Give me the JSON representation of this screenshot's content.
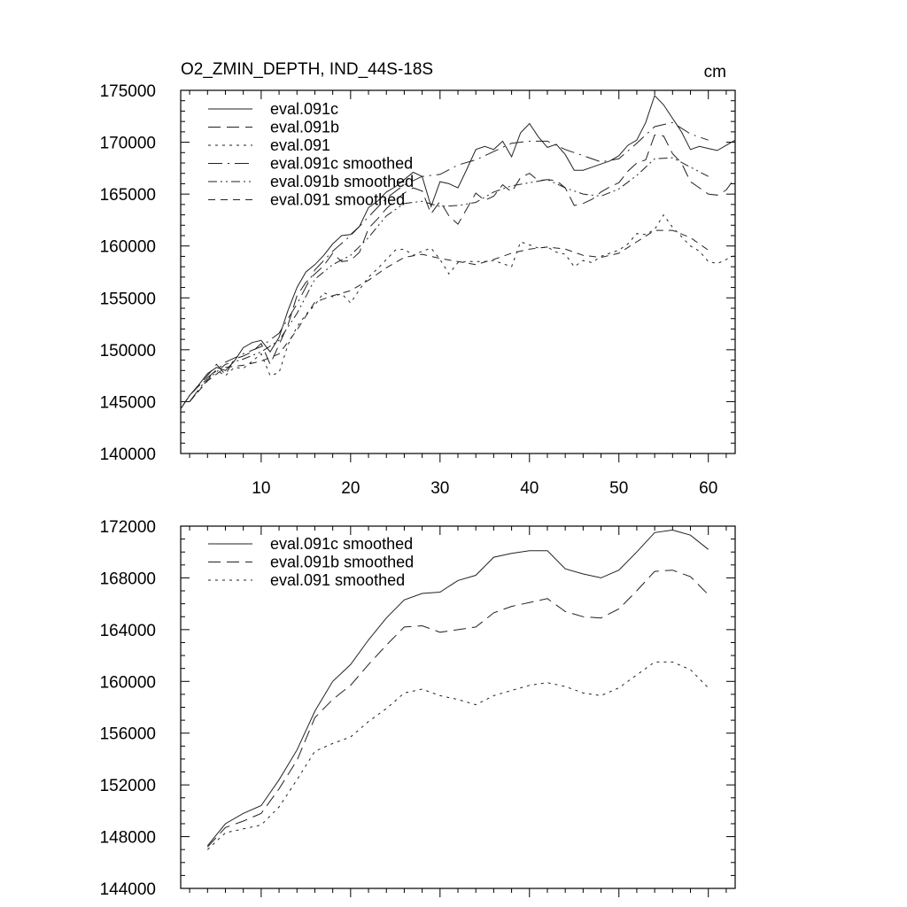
{
  "chart_data": [
    {
      "type": "line",
      "title": "O2_ZMIN_DEPTH, IND_44S-18S",
      "units": "cm",
      "xlabel": "",
      "ylabel": "",
      "xlim": [
        1,
        63
      ],
      "ylim": [
        140000,
        175000
      ],
      "xticks": [
        10,
        20,
        30,
        40,
        50,
        60
      ],
      "xtick_labels": [
        "10",
        "20",
        "30",
        "40",
        "50",
        "60"
      ],
      "yticks": [
        140000,
        145000,
        150000,
        155000,
        160000,
        165000,
        170000,
        175000
      ],
      "ytick_labels": [
        "140000",
        "145000",
        "150000",
        "155000",
        "160000",
        "165000",
        "170000",
        "175000"
      ],
      "legend_position": "top-left",
      "series": [
        {
          "name": "eval.091c",
          "style": "solid",
          "x": [
            1,
            2,
            3,
            4,
            5,
            6,
            7,
            8,
            9,
            10,
            11,
            12,
            13,
            14,
            15,
            16,
            17,
            18,
            19,
            20,
            21,
            22,
            23,
            24,
            25,
            26,
            27,
            28,
            29,
            30,
            31,
            32,
            33,
            34,
            35,
            36,
            37,
            38,
            39,
            40,
            41,
            42,
            43,
            44,
            45,
            46,
            47,
            48,
            49,
            50,
            51,
            52,
            53,
            54,
            55,
            56,
            57,
            58,
            59,
            60,
            61,
            62,
            63
          ],
          "values": [
            144300,
            145600,
            146600,
            147700,
            148300,
            148000,
            148900,
            150200,
            150700,
            150900,
            149800,
            151200,
            153800,
            156000,
            157500,
            158200,
            159100,
            160200,
            161000,
            161100,
            161900,
            163700,
            164300,
            165200,
            165700,
            166400,
            167100,
            166700,
            163800,
            166200,
            166000,
            165600,
            167400,
            169300,
            169600,
            169300,
            170100,
            168600,
            170900,
            171800,
            170500,
            169500,
            169800,
            168800,
            167300,
            167300,
            167600,
            167900,
            168200,
            168700,
            169700,
            170200,
            171900,
            174500,
            173600,
            172300,
            171000,
            169300,
            169600,
            169400,
            169200,
            169700,
            170200
          ]
        },
        {
          "name": "eval.091b",
          "style": "long-dash",
          "x": [
            1,
            2,
            3,
            4,
            5,
            6,
            7,
            8,
            9,
            10,
            11,
            12,
            13,
            14,
            15,
            16,
            17,
            18,
            19,
            20,
            21,
            22,
            23,
            24,
            25,
            26,
            27,
            28,
            29,
            30,
            31,
            32,
            33,
            34,
            35,
            36,
            37,
            38,
            39,
            40,
            41,
            42,
            43,
            44,
            45,
            46,
            47,
            48,
            49,
            50,
            51,
            52,
            53,
            54,
            55,
            56,
            57,
            58,
            59,
            60,
            61,
            62,
            63
          ],
          "values": [
            144300,
            145600,
            146500,
            147500,
            148600,
            147600,
            149100,
            149400,
            149800,
            150600,
            148600,
            150500,
            152400,
            155200,
            156500,
            157300,
            158100,
            159300,
            158500,
            158600,
            159400,
            161700,
            162600,
            163600,
            164400,
            165100,
            165600,
            165300,
            163100,
            164300,
            162900,
            162100,
            163600,
            165100,
            164400,
            164800,
            165900,
            165200,
            166600,
            167000,
            166300,
            166400,
            166300,
            165600,
            163900,
            164100,
            164500,
            165200,
            165700,
            166100,
            167200,
            168000,
            168300,
            170700,
            170600,
            168900,
            168000,
            166200,
            165600,
            165000,
            164900,
            165400,
            166600
          ]
        },
        {
          "name": "eval.091",
          "style": "dot",
          "x": [
            1,
            2,
            3,
            4,
            5,
            6,
            7,
            8,
            9,
            10,
            11,
            12,
            13,
            14,
            15,
            16,
            17,
            18,
            19,
            20,
            21,
            22,
            23,
            24,
            25,
            26,
            27,
            28,
            29,
            30,
            31,
            32,
            33,
            34,
            35,
            36,
            37,
            38,
            39,
            40,
            41,
            42,
            43,
            44,
            45,
            46,
            47,
            48,
            49,
            50,
            51,
            52,
            53,
            54,
            55,
            56,
            57,
            58,
            59,
            60,
            61,
            62,
            63
          ],
          "values": [
            144300,
            145600,
            146500,
            147200,
            148000,
            147500,
            148300,
            148200,
            148900,
            149600,
            147500,
            147800,
            150500,
            152200,
            153400,
            154300,
            155500,
            155100,
            155400,
            154500,
            155800,
            157000,
            157800,
            158700,
            159600,
            159700,
            159100,
            159500,
            159800,
            158700,
            157300,
            158400,
            158500,
            158500,
            158500,
            158600,
            158300,
            158000,
            160400,
            160100,
            159800,
            159900,
            159400,
            159200,
            158000,
            158600,
            158400,
            159000,
            159300,
            159600,
            160200,
            161200,
            161100,
            161600,
            163000,
            161800,
            160900,
            160000,
            159500,
            158500,
            158300,
            158700,
            159100
          ]
        },
        {
          "name": "eval.091c smoothed",
          "style": "dash-dot",
          "x": [
            2,
            4,
            6,
            8,
            10,
            12,
            14,
            16,
            18,
            20,
            22,
            24,
            26,
            28,
            30,
            32,
            34,
            36,
            38,
            40,
            42,
            44,
            46,
            48,
            50,
            52,
            54,
            56,
            58,
            60
          ],
          "values": [
            145000,
            147300,
            148800,
            149600,
            150300,
            151600,
            154400,
            157700,
            159500,
            161000,
            162800,
            164600,
            165900,
            166700,
            166900,
            167800,
            168300,
            169100,
            169900,
            170100,
            170100,
            169300,
            168700,
            168100,
            168400,
            169900,
            171500,
            171900,
            170800,
            170200
          ]
        },
        {
          "name": "eval.091b smoothed",
          "style": "dash-dot-dot",
          "x": [
            2,
            4,
            6,
            8,
            10,
            12,
            14,
            16,
            18,
            20,
            22,
            24,
            26,
            28,
            30,
            32,
            34,
            36,
            38,
            40,
            42,
            44,
            46,
            48,
            50,
            52,
            54,
            56,
            58,
            60
          ],
          "values": [
            145000,
            147100,
            148600,
            149100,
            149800,
            150900,
            153500,
            156800,
            158200,
            159100,
            160800,
            162900,
            164100,
            164300,
            163800,
            163900,
            164200,
            165200,
            165800,
            166100,
            166400,
            165600,
            165000,
            164800,
            165500,
            166800,
            168400,
            168500,
            167600,
            166700
          ]
        },
        {
          "name": "eval.091 smoothed",
          "style": "dash",
          "x": [
            2,
            4,
            6,
            8,
            10,
            12,
            14,
            16,
            18,
            20,
            22,
            24,
            26,
            28,
            30,
            32,
            34,
            36,
            38,
            40,
            42,
            44,
            46,
            48,
            50,
            52,
            54,
            56,
            58,
            60
          ],
          "values": [
            145000,
            147000,
            148300,
            148500,
            148900,
            149600,
            151900,
            154600,
            155200,
            155700,
            156700,
            157900,
            158900,
            159200,
            158800,
            158500,
            158200,
            158700,
            159300,
            159700,
            159900,
            159700,
            159100,
            158900,
            159300,
            160400,
            161500,
            161500,
            160800,
            159600
          ]
        }
      ]
    },
    {
      "type": "line",
      "title": "",
      "xlabel": "",
      "ylabel": "",
      "xlim": [
        1,
        63
      ],
      "ylim": [
        144000,
        172000
      ],
      "xticks": [
        10,
        20,
        30,
        40,
        50,
        60
      ],
      "xtick_labels": [],
      "yticks": [
        144000,
        148000,
        152000,
        156000,
        160000,
        164000,
        168000,
        172000
      ],
      "ytick_labels": [
        "144000",
        "148000",
        "152000",
        "156000",
        "160000",
        "164000",
        "168000",
        "172000"
      ],
      "legend_position": "top-left",
      "series": [
        {
          "name": "eval.091c smoothed",
          "style": "solid",
          "x": [
            4,
            6,
            8,
            10,
            12,
            14,
            16,
            18,
            20,
            22,
            24,
            26,
            28,
            30,
            32,
            34,
            36,
            38,
            40,
            42,
            44,
            46,
            48,
            50,
            52,
            54,
            56,
            58,
            60
          ],
          "values": [
            147300,
            149000,
            149800,
            150400,
            152400,
            154700,
            157700,
            160000,
            161300,
            163200,
            164900,
            166300,
            166800,
            166900,
            167800,
            168200,
            169600,
            169900,
            170100,
            170100,
            168700,
            168300,
            168000,
            168600,
            170000,
            171500,
            171700,
            171300,
            170200
          ]
        },
        {
          "name": "eval.091b smoothed",
          "style": "long-dash",
          "x": [
            4,
            6,
            8,
            10,
            12,
            14,
            16,
            18,
            20,
            22,
            24,
            26,
            28,
            30,
            32,
            34,
            36,
            38,
            40,
            42,
            44,
            46,
            48,
            50,
            52,
            54,
            56,
            58,
            60
          ],
          "values": [
            147200,
            148700,
            149200,
            149800,
            151700,
            153900,
            157200,
            158600,
            159700,
            161300,
            162800,
            164200,
            164300,
            163800,
            164000,
            164200,
            165300,
            165800,
            166100,
            166400,
            165400,
            165000,
            164900,
            165600,
            167000,
            168500,
            168600,
            168100,
            166700
          ]
        },
        {
          "name": "eval.091 smoothed",
          "style": "dot",
          "x": [
            4,
            6,
            8,
            10,
            12,
            14,
            16,
            18,
            20,
            22,
            24,
            26,
            28,
            30,
            32,
            34,
            36,
            38,
            40,
            42,
            44,
            46,
            48,
            50,
            52,
            54,
            56,
            58,
            60
          ],
          "values": [
            147000,
            148300,
            148600,
            148900,
            150300,
            152400,
            154600,
            155200,
            155700,
            156900,
            157900,
            159100,
            159400,
            158900,
            158600,
            158200,
            158900,
            159300,
            159700,
            159900,
            159600,
            159100,
            158900,
            159500,
            160500,
            161500,
            161500,
            160900,
            159500
          ]
        }
      ]
    }
  ]
}
